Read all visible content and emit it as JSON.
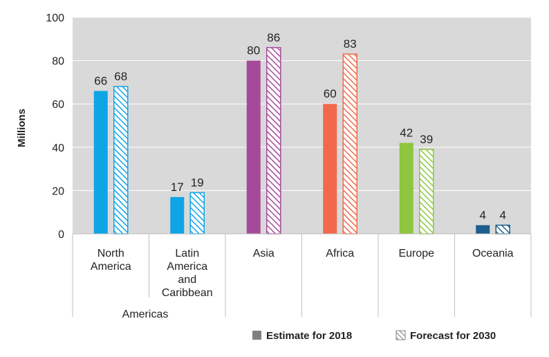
{
  "chart_data": {
    "type": "bar",
    "ylabel": "Millions",
    "ylim": [
      0,
      100
    ],
    "yticks": [
      0,
      20,
      40,
      60,
      80,
      100
    ],
    "grid": true,
    "group_label": "Americas",
    "categories": [
      {
        "label_lines": [
          "North",
          "America"
        ],
        "color": "#0ea5e5",
        "estimate": 66,
        "forecast": 68
      },
      {
        "label_lines": [
          "Latin",
          "America",
          "and",
          "Caribbean"
        ],
        "color": "#0ea5e5",
        "estimate": 17,
        "forecast": 19
      },
      {
        "label_lines": [
          "Asia"
        ],
        "color": "#a54a98",
        "estimate": 80,
        "forecast": 86
      },
      {
        "label_lines": [
          "Africa"
        ],
        "color": "#f1694a",
        "estimate": 60,
        "forecast": 83
      },
      {
        "label_lines": [
          "Europe"
        ],
        "color": "#8dc63f",
        "estimate": 42,
        "forecast": 39
      },
      {
        "label_lines": [
          "Oceania"
        ],
        "color": "#1d5e8c",
        "estimate": 4,
        "forecast": 4
      }
    ],
    "legend": {
      "position": "bottom-right",
      "estimate_label": "Estimate for 2018",
      "forecast_label": "Forecast for 2030",
      "swatch_color": "#808080"
    }
  }
}
